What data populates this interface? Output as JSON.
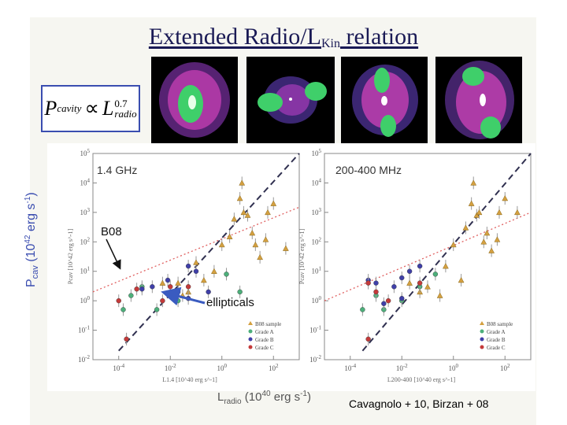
{
  "slide": {
    "title_main": "Extended Radio/L",
    "title_sub": "Kin",
    "title_end": " relation",
    "formula": {
      "lhs": "P",
      "lhs_sub": "cavity",
      "rel": "∝",
      "rhs": "L",
      "rhs_sub": "radio",
      "rhs_sup": "0.7"
    },
    "yaxis_label": "P",
    "yaxis_sub": "cav",
    "yaxis_units": " (10",
    "yaxis_exp": "42",
    "yaxis_end": " erg s",
    "yaxis_exp2": "-1",
    "yaxis_close": ")",
    "xaxis_label": "L",
    "xaxis_sub": "radio",
    "xaxis_units": " (10",
    "xaxis_exp": "40",
    "xaxis_end": " erg s",
    "xaxis_exp2": "-1",
    "xaxis_close": ")",
    "annotation_b08": "B08",
    "annotation_ellipticals": "ellipticals",
    "citation": "Cavagnolo + 10, Birzan + 08"
  },
  "chart_data": [
    {
      "type": "scatter",
      "title": "1.4 GHz",
      "xlabel": "L1.4 [10^40 erg s^-1]",
      "ylabel": "Pcav [10^42 erg s^-1]",
      "xscale": "log",
      "yscale": "log",
      "xlim": [
        1e-05,
        1000
      ],
      "ylim": [
        0.01,
        100000
      ],
      "x_ticks": [
        "10^-4",
        "10^-2",
        "10^0",
        "10^2"
      ],
      "y_ticks": [
        "10^-2",
        "10^-1",
        "10^0",
        "10^1",
        "10^2",
        "10^3",
        "10^4",
        "10^5"
      ],
      "legend": {
        "position": "lower-right",
        "entries": [
          "B08 sample",
          "Grade A",
          "Grade B",
          "Grade C"
        ]
      },
      "series": [
        {
          "name": "B08 sample",
          "color": "#d4a040",
          "points": [
            [
              0.005,
              4
            ],
            [
              0.02,
              4
            ],
            [
              0.03,
              1.5
            ],
            [
              0.1,
              20
            ],
            [
              0.2,
              5
            ],
            [
              0.5,
              10
            ],
            [
              1,
              80
            ],
            [
              2,
              150
            ],
            [
              3,
              600
            ],
            [
              5,
              3000
            ],
            [
              6,
              10000
            ],
            [
              7,
              1000
            ],
            [
              10,
              800
            ],
            [
              15,
              200
            ],
            [
              20,
              80
            ],
            [
              30,
              30
            ],
            [
              50,
              120
            ],
            [
              60,
              1000
            ],
            [
              100,
              2000
            ],
            [
              300,
              60
            ],
            [
              0.05,
              2
            ]
          ]
        },
        {
          "name": "Grade A",
          "color": "#4caf7a",
          "points": [
            [
              0.00015,
              0.5
            ],
            [
              0.0003,
              1.5
            ],
            [
              0.0008,
              3
            ],
            [
              0.003,
              0.5
            ],
            [
              0.02,
              1
            ],
            [
              1.5,
              8
            ],
            [
              5,
              2
            ]
          ]
        },
        {
          "name": "Grade B",
          "color": "#3f3fa8",
          "points": [
            [
              0.0008,
              2.5
            ],
            [
              0.002,
              3
            ],
            [
              0.008,
              5
            ],
            [
              0.02,
              2
            ],
            [
              0.05,
              15
            ],
            [
              0.1,
              10
            ],
            [
              0.3,
              2
            ],
            [
              0.05,
              1.2
            ]
          ]
        },
        {
          "name": "Grade C",
          "color": "#c43a3a",
          "points": [
            [
              0.0001,
              1
            ],
            [
              0.0002,
              0.05
            ],
            [
              0.0005,
              2.5
            ],
            [
              0.005,
              1
            ],
            [
              0.01,
              3
            ],
            [
              0.05,
              3
            ]
          ]
        }
      ],
      "fits": [
        {
          "style": "dashed",
          "color": "#303050",
          "points": [
            [
              0.0001,
              0.02
            ],
            [
              1000,
              100000
            ]
          ]
        },
        {
          "style": "dotted",
          "color": "#e06060",
          "points": [
            [
              1e-05,
              2
            ],
            [
              1000,
              1500
            ]
          ]
        }
      ]
    },
    {
      "type": "scatter",
      "title": "200-400 MHz",
      "xlabel": "L200-400 [10^40 erg s^-1]",
      "ylabel": "Pcav [10^42 erg s^-1]",
      "xscale": "log",
      "yscale": "log",
      "xlim": [
        1e-05,
        1000
      ],
      "ylim": [
        0.01,
        100000
      ],
      "x_ticks": [
        "10^-4",
        "10^-2",
        "10^0",
        "10^2"
      ],
      "y_ticks": [
        "10^-2",
        "10^-1",
        "10^0",
        "10^1",
        "10^2",
        "10^3",
        "10^4",
        "10^5"
      ],
      "legend": {
        "position": "lower-right",
        "entries": [
          "B08 sample",
          "Grade A",
          "Grade B",
          "Grade C"
        ]
      },
      "series": [
        {
          "name": "B08 sample",
          "color": "#d4a040",
          "points": [
            [
              0.02,
              4
            ],
            [
              0.05,
              2
            ],
            [
              0.1,
              3
            ],
            [
              0.3,
              1.5
            ],
            [
              0.5,
              15
            ],
            [
              1,
              80
            ],
            [
              2,
              5
            ],
            [
              3,
              300
            ],
            [
              5,
              2000
            ],
            [
              6,
              10000
            ],
            [
              8,
              800
            ],
            [
              10,
              1000
            ],
            [
              15,
              100
            ],
            [
              20,
              200
            ],
            [
              30,
              50
            ],
            [
              50,
              120
            ],
            [
              60,
              1000
            ],
            [
              100,
              3000
            ],
            [
              300,
              1000
            ]
          ]
        },
        {
          "name": "Grade A",
          "color": "#4caf7a",
          "points": [
            [
              0.0003,
              0.5
            ],
            [
              0.001,
              1.5
            ],
            [
              0.002,
              0.5
            ],
            [
              0.01,
              1
            ],
            [
              0.05,
              3
            ],
            [
              0.2,
              8
            ]
          ]
        },
        {
          "name": "Grade B",
          "color": "#3f3fa8",
          "points": [
            [
              0.0005,
              5
            ],
            [
              0.001,
              4
            ],
            [
              0.002,
              0.8
            ],
            [
              0.005,
              3
            ],
            [
              0.01,
              6
            ],
            [
              0.02,
              10
            ],
            [
              0.05,
              15
            ],
            [
              0.01,
              1.2
            ]
          ]
        },
        {
          "name": "Grade C",
          "color": "#c43a3a",
          "points": [
            [
              0.0005,
              4
            ],
            [
              0.0005,
              0.05
            ],
            [
              0.001,
              2
            ],
            [
              0.003,
              1
            ],
            [
              0.05,
              4
            ]
          ]
        }
      ],
      "fits": [
        {
          "style": "dashed",
          "color": "#303050",
          "points": [
            [
              0.0003,
              0.02
            ],
            [
              1000,
              100000
            ]
          ]
        },
        {
          "style": "dotted",
          "color": "#e06060",
          "points": [
            [
              1e-05,
              1
            ],
            [
              1000,
              1000
            ]
          ]
        }
      ]
    }
  ]
}
